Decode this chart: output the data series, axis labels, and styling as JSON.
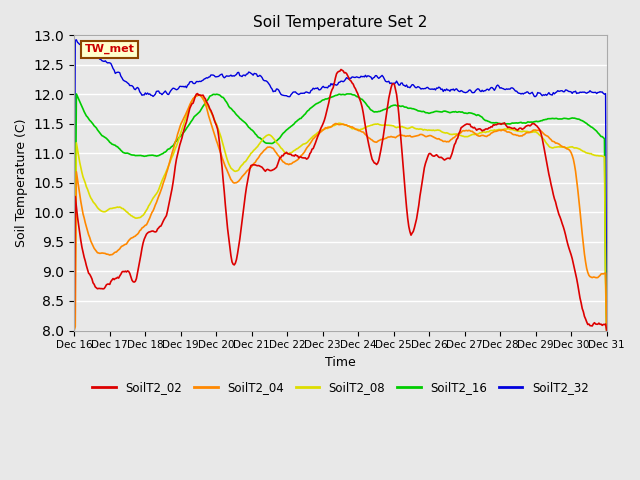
{
  "title": "Soil Temperature Set 2",
  "xlabel": "Time",
  "ylabel": "Soil Temperature (C)",
  "ylim": [
    8.0,
    13.0
  ],
  "yticks": [
    8.0,
    8.5,
    9.0,
    9.5,
    10.0,
    10.5,
    11.0,
    11.5,
    12.0,
    12.5,
    13.0
  ],
  "plot_bg_color": "#e8e8e8",
  "fig_bg_color": "#e8e8e8",
  "annotation_label": "TW_met",
  "annotation_bg": "#ffffcc",
  "annotation_border": "#8b4500",
  "annotation_text_color": "#cc0000",
  "series_colors": {
    "SoilT2_02": "#dd0000",
    "SoilT2_04": "#ff8800",
    "SoilT2_08": "#dddd00",
    "SoilT2_16": "#00cc00",
    "SoilT2_32": "#0000dd"
  },
  "legend_entries": [
    "SoilT2_02",
    "SoilT2_04",
    "SoilT2_08",
    "SoilT2_16",
    "SoilT2_32"
  ],
  "x_tick_labels": [
    "Dec 16",
    "Dec 17",
    "Dec 18",
    "Dec 19",
    "Dec 20",
    "Dec 21",
    "Dec 22",
    "Dec 23",
    "Dec 24",
    "Dec 25",
    "Dec 26",
    "Dec 27",
    "Dec 28",
    "Dec 29",
    "Dec 30",
    "Dec 31"
  ],
  "n_points": 480
}
